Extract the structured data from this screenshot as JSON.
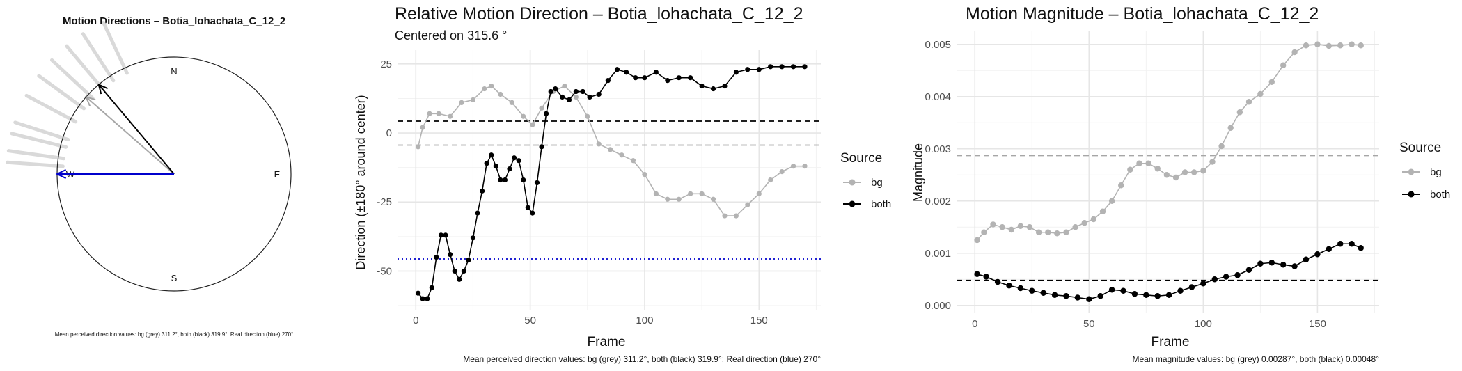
{
  "compass": {
    "title": "Motion Directions – Botia_lohachata_C_12_2",
    "labels": {
      "n": "N",
      "e": "E",
      "s": "S",
      "w": "W"
    },
    "caption": "Mean perceived direction values: bg (grey) 311.2°, both (black) 319.9°; Real direction (blue) 270°",
    "arrows": [
      {
        "name": "bg",
        "angle_deg": 311.2,
        "color": "#a6a6a6"
      },
      {
        "name": "both",
        "angle_deg": 319.9,
        "color": "#000000"
      },
      {
        "name": "real",
        "angle_deg": 270,
        "color": "#0000cc"
      }
    ],
    "spoke_angles_deg": [
      288,
      298,
      306,
      313,
      320,
      327,
      335,
      284,
      278,
      274
    ],
    "colors": {
      "spoke": "#d9d9d9",
      "bg": "#a6a6a6",
      "both": "#000000",
      "real": "#0000cc"
    }
  },
  "chart_data": [
    {
      "type": "line",
      "title": "Relative Motion Direction – Botia_lohachata_C_12_2",
      "subtitle": "Centered on  315.6 °",
      "xlabel": "Frame",
      "ylabel": "Direction (±180° around center)",
      "xlim": [
        -8,
        177
      ],
      "ylim": [
        -64,
        30
      ],
      "xticks": [
        0,
        50,
        100,
        150
      ],
      "yticks": [
        -50,
        -25,
        0,
        25
      ],
      "grid": true,
      "legend_title": "Source",
      "legend_position": "right",
      "caption": "Mean perceived direction values: bg (grey) 311.2°, both (black) 319.9°; Real direction (blue) 270°",
      "series": [
        {
          "name": "bg",
          "color": "#b3b3b3",
          "x": [
            1,
            3,
            6,
            10,
            15,
            20,
            25,
            30,
            33,
            37,
            42,
            47,
            51,
            55,
            60,
            65,
            70,
            75,
            80,
            85,
            90,
            95,
            100,
            105,
            110,
            115,
            120,
            125,
            130,
            135,
            140,
            145,
            150,
            155,
            160,
            165,
            170
          ],
          "y": [
            -5,
            2,
            7,
            7,
            6,
            11,
            12,
            16,
            17,
            14,
            11,
            6,
            3,
            9,
            15,
            17,
            13,
            6,
            -4,
            -6,
            -8,
            -10,
            -15,
            -22,
            -24,
            -24,
            -22,
            -22,
            -24,
            -30,
            -30,
            -26,
            -22,
            -17,
            -14,
            -12,
            -12
          ]
        },
        {
          "name": "both",
          "color": "#000000",
          "x": [
            1,
            3,
            5,
            7,
            9,
            11,
            13,
            15,
            17,
            19,
            21,
            23,
            25,
            27,
            29,
            31,
            33,
            35,
            37,
            39,
            41,
            43,
            45,
            47,
            49,
            51,
            53,
            55,
            57,
            59,
            61,
            64,
            67,
            70,
            73,
            76,
            80,
            84,
            88,
            92,
            96,
            100,
            105,
            110,
            115,
            120,
            125,
            130,
            135,
            140,
            145,
            150,
            155,
            160,
            165,
            170
          ],
          "y": [
            -58,
            -60,
            -60,
            -56,
            -45,
            -37,
            -37,
            -44,
            -50,
            -53,
            -50,
            -46,
            -38,
            -29,
            -21,
            -11,
            -8,
            -12,
            -17,
            -17,
            -13,
            -9,
            -10,
            -17,
            -27,
            -29,
            -18,
            -5,
            7,
            15,
            16,
            13,
            12,
            15,
            15,
            13,
            14,
            19,
            23,
            22,
            20,
            20,
            22,
            19,
            20,
            20,
            17,
            16,
            17,
            22,
            23,
            23,
            24,
            24,
            24,
            24
          ]
        }
      ],
      "hlines": [
        {
          "y": 4.3,
          "color": "#000000",
          "style": "dashed"
        },
        {
          "y": -4.4,
          "color": "#a6a6a6",
          "style": "dashed"
        },
        {
          "y": -45.6,
          "color": "#0000cc",
          "style": "dotted"
        }
      ]
    },
    {
      "type": "line",
      "title": "Motion Magnitude – Botia_lohachata_C_12_2",
      "xlabel": "Frame",
      "ylabel": "Magnitude",
      "xlim": [
        -8,
        177
      ],
      "ylim": [
        -0.00015,
        0.00525
      ],
      "xticks": [
        0,
        50,
        100,
        150
      ],
      "yticks": [
        0.0,
        0.001,
        0.002,
        0.003,
        0.004,
        0.005
      ],
      "ytick_labels": [
        "0.000",
        "0.001",
        "0.002",
        "0.003",
        "0.004",
        "0.005"
      ],
      "grid": true,
      "legend_title": "Source",
      "legend_position": "right",
      "caption": "Mean magnitude values: bg (grey) 0.00287°, both (black) 0.00048°",
      "series": [
        {
          "name": "bg",
          "color": "#b3b3b3",
          "x": [
            1,
            4,
            8,
            12,
            16,
            20,
            24,
            28,
            32,
            36,
            40,
            44,
            48,
            52,
            56,
            60,
            64,
            68,
            72,
            76,
            80,
            84,
            88,
            92,
            96,
            100,
            104,
            108,
            112,
            116,
            120,
            125,
            130,
            135,
            140,
            145,
            150,
            155,
            160,
            165,
            169
          ],
          "y": [
            0.00125,
            0.0014,
            0.00155,
            0.0015,
            0.00145,
            0.00152,
            0.0015,
            0.0014,
            0.0014,
            0.00138,
            0.0014,
            0.0015,
            0.00158,
            0.00165,
            0.0018,
            0.002,
            0.0023,
            0.0026,
            0.00272,
            0.00272,
            0.00262,
            0.0025,
            0.00245,
            0.00255,
            0.00255,
            0.00258,
            0.00275,
            0.00305,
            0.0034,
            0.0037,
            0.0039,
            0.00405,
            0.00428,
            0.0046,
            0.00485,
            0.00498,
            0.005,
            0.00497,
            0.00498,
            0.005,
            0.00498
          ]
        },
        {
          "name": "both",
          "color": "#000000",
          "x": [
            1,
            5,
            10,
            15,
            20,
            25,
            30,
            35,
            40,
            45,
            50,
            55,
            60,
            65,
            70,
            75,
            80,
            85,
            90,
            95,
            100,
            105,
            110,
            115,
            120,
            125,
            130,
            135,
            140,
            145,
            150,
            155,
            160,
            165,
            169
          ],
          "y": [
            0.0006,
            0.00055,
            0.00045,
            0.00038,
            0.00033,
            0.00028,
            0.00024,
            0.0002,
            0.00018,
            0.00015,
            0.00012,
            0.00018,
            0.0003,
            0.00028,
            0.00022,
            0.0002,
            0.00018,
            0.0002,
            0.00028,
            0.00035,
            0.00042,
            0.0005,
            0.00055,
            0.00058,
            0.00068,
            0.0008,
            0.00082,
            0.00078,
            0.00075,
            0.00088,
            0.00098,
            0.00108,
            0.00118,
            0.00118,
            0.0011
          ]
        }
      ],
      "hlines": [
        {
          "y": 0.00287,
          "color": "#a6a6a6",
          "style": "dashed"
        },
        {
          "y": 0.00048,
          "color": "#000000",
          "style": "dashed"
        }
      ]
    }
  ]
}
